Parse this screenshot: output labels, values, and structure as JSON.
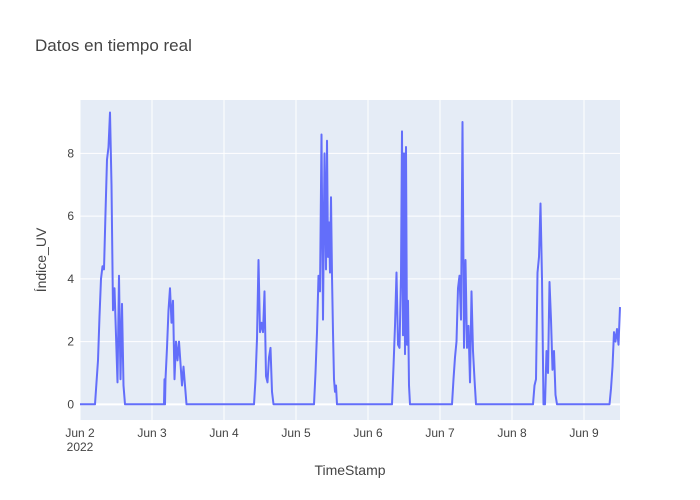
{
  "chart_data": {
    "type": "line",
    "title": "Datos en tiempo real",
    "xlabel": "TimeStamp",
    "ylabel": "Índice_UV",
    "xlim": [
      "2022-06-02T00:00",
      "2022-06-09T12:00"
    ],
    "ylim": [
      -0.5,
      9.7
    ],
    "x_ticks": [
      {
        "at": "2022-06-02T00:00",
        "label": "Jun 2",
        "sub": "2022"
      },
      {
        "at": "2022-06-03T00:00",
        "label": "Jun 3",
        "sub": ""
      },
      {
        "at": "2022-06-04T00:00",
        "label": "Jun 4",
        "sub": ""
      },
      {
        "at": "2022-06-05T00:00",
        "label": "Jun 5",
        "sub": ""
      },
      {
        "at": "2022-06-06T00:00",
        "label": "Jun 6",
        "sub": ""
      },
      {
        "at": "2022-06-07T00:00",
        "label": "Jun 7",
        "sub": ""
      },
      {
        "at": "2022-06-08T00:00",
        "label": "Jun 8",
        "sub": ""
      },
      {
        "at": "2022-06-09T00:00",
        "label": "Jun 9",
        "sub": ""
      }
    ],
    "y_ticks": [
      0,
      2,
      4,
      6,
      8
    ],
    "grid": true,
    "colors": {
      "line": "#636efa",
      "plot_bg": "#e5ecf6",
      "grid": "#ffffff",
      "text": "#444444"
    },
    "series": [
      {
        "x": [
          "2022-06-02T00:00",
          "2022-06-02T05:00",
          "2022-06-02T05:30",
          "2022-06-02T06:00",
          "2022-06-02T06:30",
          "2022-06-02T07:00",
          "2022-06-02T07:30",
          "2022-06-02T08:00",
          "2022-06-02T08:30",
          "2022-06-02T09:00",
          "2022-06-02T09:30",
          "2022-06-02T10:00",
          "2022-06-02T10:30",
          "2022-06-02T11:00",
          "2022-06-02T11:30",
          "2022-06-02T12:00",
          "2022-06-02T12:30",
          "2022-06-02T13:00",
          "2022-06-02T13:30",
          "2022-06-02T14:00",
          "2022-06-02T14:30",
          "2022-06-02T15:00",
          "2022-06-02T15:30",
          "2022-06-02T16:00",
          "2022-06-02T16:30",
          "2022-06-02T17:00",
          "2022-06-03T04:00",
          "2022-06-03T04:10",
          "2022-06-03T04:20",
          "2022-06-03T04:30",
          "2022-06-03T05:00",
          "2022-06-03T05:30",
          "2022-06-03T06:00",
          "2022-06-03T06:30",
          "2022-06-03T07:00",
          "2022-06-03T07:30",
          "2022-06-03T08:00",
          "2022-06-03T08:30",
          "2022-06-03T09:00",
          "2022-06-03T09:30",
          "2022-06-03T10:00",
          "2022-06-03T10:30",
          "2022-06-03T11:00",
          "2022-06-03T11:30",
          "2022-06-03T12:00",
          "2022-06-03T12:30",
          "2022-06-03T13:00",
          "2022-06-03T13:30",
          "2022-06-03T14:00",
          "2022-06-03T14:30",
          "2022-06-04T10:00",
          "2022-06-04T10:30",
          "2022-06-04T11:00",
          "2022-06-04T11:30",
          "2022-06-04T12:00",
          "2022-06-04T12:30",
          "2022-06-04T13:00",
          "2022-06-04T13:30",
          "2022-06-04T14:00",
          "2022-06-04T14:30",
          "2022-06-04T15:00",
          "2022-06-04T15:30",
          "2022-06-04T16:00",
          "2022-06-04T16:30",
          "2022-06-04T17:00",
          "2022-06-04T17:30",
          "2022-06-05T06:00",
          "2022-06-05T06:30",
          "2022-06-05T07:00",
          "2022-06-05T07:30",
          "2022-06-05T08:00",
          "2022-06-05T08:30",
          "2022-06-05T09:00",
          "2022-06-05T09:30",
          "2022-06-05T10:00",
          "2022-06-05T10:20",
          "2022-06-05T10:40",
          "2022-06-05T11:00",
          "2022-06-05T11:20",
          "2022-06-05T11:40",
          "2022-06-05T12:00",
          "2022-06-05T12:20",
          "2022-06-05T12:40",
          "2022-06-05T13:00",
          "2022-06-05T13:20",
          "2022-06-05T13:40",
          "2022-06-05T14:00",
          "2022-06-05T14:30",
          "2022-06-05T15:00",
          "2022-06-05T15:30",
          "2022-06-05T16:00",
          "2022-06-05T16:30",
          "2022-06-05T17:00",
          "2022-06-06T08:00",
          "2022-06-06T08:30",
          "2022-06-06T09:00",
          "2022-06-06T09:30",
          "2022-06-06T10:00",
          "2022-06-06T10:30",
          "2022-06-06T11:00",
          "2022-06-06T11:20",
          "2022-06-06T11:40",
          "2022-06-06T12:00",
          "2022-06-06T12:20",
          "2022-06-06T12:40",
          "2022-06-06T13:00",
          "2022-06-06T13:20",
          "2022-06-06T13:40",
          "2022-06-06T14:00",
          "2022-06-06T14:20",
          "2022-06-06T14:40",
          "2022-06-06T15:00",
          "2022-06-06T15:30",
          "2022-06-06T16:00",
          "2022-06-06T16:30",
          "2022-06-07T04:00",
          "2022-06-07T04:30",
          "2022-06-07T05:00",
          "2022-06-07T05:30",
          "2022-06-07T06:00",
          "2022-06-07T06:30",
          "2022-06-07T07:00",
          "2022-06-07T07:30",
          "2022-06-07T08:00",
          "2022-06-07T08:30",
          "2022-06-07T09:00",
          "2022-06-07T09:30",
          "2022-06-07T10:00",
          "2022-06-07T10:30",
          "2022-06-07T11:00",
          "2022-06-07T11:30",
          "2022-06-07T12:00",
          "2022-06-07T12:30",
          "2022-06-07T13:00",
          "2022-06-07T13:30",
          "2022-06-07T14:00",
          "2022-06-07T14:30",
          "2022-06-07T15:00",
          "2022-06-07T15:30",
          "2022-06-07T16:00",
          "2022-06-08T07:00",
          "2022-06-08T07:30",
          "2022-06-08T08:00",
          "2022-06-08T08:30",
          "2022-06-08T09:00",
          "2022-06-08T09:30",
          "2022-06-08T10:00",
          "2022-06-08T10:30",
          "2022-06-08T11:00",
          "2022-06-08T11:30",
          "2022-06-08T12:00",
          "2022-06-08T12:30",
          "2022-06-08T13:00",
          "2022-06-08T13:30",
          "2022-06-08T14:00",
          "2022-06-08T14:30",
          "2022-06-08T15:00",
          "2022-06-08T15:30",
          "2022-06-08T16:00",
          "2022-06-08T16:30",
          "2022-06-08T17:00",
          "2022-06-08T17:30",
          "2022-06-08T18:00",
          "2022-06-09T06:00",
          "2022-06-09T06:30",
          "2022-06-09T07:00",
          "2022-06-09T07:30",
          "2022-06-09T08:00",
          "2022-06-09T08:30",
          "2022-06-09T09:00",
          "2022-06-09T09:30",
          "2022-06-09T10:00",
          "2022-06-09T10:30",
          "2022-06-09T11:00",
          "2022-06-09T11:30",
          "2022-06-09T12:00"
        ],
        "y": [
          0,
          0,
          0.7,
          1.4,
          2.8,
          4.0,
          4.4,
          4.3,
          6.1,
          7.8,
          8.2,
          9.3,
          7.0,
          3.0,
          3.7,
          2.2,
          0.7,
          4.1,
          0.8,
          3.2,
          0.6,
          0,
          0,
          0,
          0,
          0,
          0,
          0.8,
          0,
          0.8,
          1.8,
          3.0,
          3.7,
          2.6,
          3.3,
          0.8,
          2.0,
          1.4,
          2.0,
          1.3,
          0.6,
          1.2,
          0.6,
          0,
          0,
          0,
          0,
          0,
          0,
          0,
          0,
          0.8,
          2.1,
          4.6,
          2.3,
          2.6,
          2.3,
          3.6,
          0.9,
          0.7,
          1.5,
          1.8,
          0.4,
          0,
          0,
          0,
          0,
          1.0,
          2.3,
          4.1,
          3.6,
          8.6,
          2.7,
          8.0,
          4.3,
          8.4,
          4.7,
          5.8,
          4.2,
          6.6,
          4.1,
          2.3,
          0.8,
          0.4,
          0.6,
          0,
          0,
          0,
          0,
          0,
          0,
          0,
          0,
          0,
          1.2,
          2.5,
          4.2,
          1.9,
          1.8,
          4.1,
          8.7,
          2.2,
          8.0,
          1.6,
          8.2,
          1.9,
          3.3,
          0.6,
          0,
          0,
          0,
          0,
          0,
          0,
          0,
          0,
          0.8,
          1.5,
          2.0,
          3.7,
          4.1,
          2.7,
          9.0,
          1.8,
          4.6,
          1.8,
          2.5,
          0.7,
          3.6,
          1.7,
          0.8,
          0,
          0,
          0,
          0,
          0,
          0,
          0,
          0,
          0,
          0,
          0.6,
          0.8,
          4.2,
          4.7,
          6.4,
          4.0,
          0,
          0,
          1.7,
          1.0,
          3.9,
          2.7,
          1.1,
          1.7,
          0.3,
          0,
          0,
          0,
          0,
          0,
          0,
          0,
          0,
          0,
          0,
          0,
          0,
          0,
          0.5,
          1.2,
          2.3,
          2.0,
          2.4,
          1.9,
          3.1
        ]
      }
    ]
  }
}
